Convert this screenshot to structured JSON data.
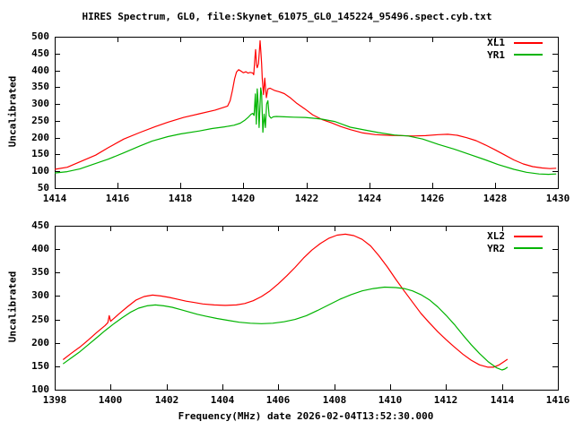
{
  "title": "HIRES Spectrum, GL0, file:Skynet_61075_GL0_145224_95496.spect.cyb.txt",
  "palette": {
    "background": "#ffffff",
    "foreground": "#000000",
    "xl_color": "#ff0000",
    "yr_color": "#00b400"
  },
  "chart_data": [
    {
      "type": "line",
      "title": "",
      "xlabel": "",
      "ylabel": "Uncalibrated",
      "xlim": [
        1414,
        1430
      ],
      "ylim": [
        50,
        500
      ],
      "xticks": [
        1414,
        1416,
        1418,
        1420,
        1422,
        1424,
        1426,
        1428,
        1430
      ],
      "yticks": [
        50,
        100,
        150,
        200,
        250,
        300,
        350,
        400,
        450,
        500
      ],
      "grid": false,
      "legend_position": "top-right",
      "series": [
        {
          "name": "XL1",
          "color": "#ff0000",
          "points": [
            [
              1414.0,
              106
            ],
            [
              1414.4,
              112
            ],
            [
              1414.8,
              128
            ],
            [
              1415.3,
              148
            ],
            [
              1415.7,
              170
            ],
            [
              1416.2,
              196
            ],
            [
              1416.7,
              215
            ],
            [
              1417.2,
              233
            ],
            [
              1417.6,
              246
            ],
            [
              1418.1,
              260
            ],
            [
              1418.6,
              271
            ],
            [
              1419.1,
              282
            ],
            [
              1419.5,
              294
            ],
            [
              1419.58,
              310
            ],
            [
              1419.65,
              340
            ],
            [
              1419.72,
              375
            ],
            [
              1419.78,
              395
            ],
            [
              1419.85,
              402
            ],
            [
              1419.92,
              398
            ],
            [
              1420.0,
              393
            ],
            [
              1420.08,
              396
            ],
            [
              1420.15,
              392
            ],
            [
              1420.22,
              394
            ],
            [
              1420.3,
              392
            ],
            [
              1420.33,
              387
            ],
            [
              1420.37,
              440
            ],
            [
              1420.39,
              462
            ],
            [
              1420.42,
              415
            ],
            [
              1420.44,
              408
            ],
            [
              1420.48,
              420
            ],
            [
              1420.53,
              488
            ],
            [
              1420.56,
              450
            ],
            [
              1420.58,
              420
            ],
            [
              1420.6,
              376
            ],
            [
              1420.64,
              328
            ],
            [
              1420.68,
              377
            ],
            [
              1420.73,
              319
            ],
            [
              1420.78,
              345
            ],
            [
              1420.85,
              347
            ],
            [
              1421.0,
              340
            ],
            [
              1421.15,
              336
            ],
            [
              1421.3,
              331
            ],
            [
              1421.5,
              318
            ],
            [
              1421.7,
              302
            ],
            [
              1421.96,
              285
            ],
            [
              1422.2,
              268
            ],
            [
              1422.5,
              254
            ],
            [
              1422.8,
              244
            ],
            [
              1423.1,
              233
            ],
            [
              1423.4,
              224
            ],
            [
              1423.8,
              214
            ],
            [
              1424.2,
              209
            ],
            [
              1424.6,
              207
            ],
            [
              1425.0,
              206
            ],
            [
              1425.4,
              205
            ],
            [
              1425.8,
              206
            ],
            [
              1426.2,
              209
            ],
            [
              1426.5,
              210
            ],
            [
              1426.8,
              207
            ],
            [
              1427.1,
              200
            ],
            [
              1427.4,
              191
            ],
            [
              1427.7,
              178
            ],
            [
              1428.0,
              164
            ],
            [
              1428.3,
              149
            ],
            [
              1428.6,
              134
            ],
            [
              1428.9,
              122
            ],
            [
              1429.2,
              114
            ],
            [
              1429.5,
              110
            ],
            [
              1429.75,
              108
            ],
            [
              1429.95,
              109
            ]
          ]
        },
        {
          "name": "YR1",
          "color": "#00b400",
          "points": [
            [
              1414.0,
              95
            ],
            [
              1414.4,
              99
            ],
            [
              1414.8,
              107
            ],
            [
              1415.2,
              120
            ],
            [
              1415.7,
              136
            ],
            [
              1416.2,
              155
            ],
            [
              1416.7,
              175
            ],
            [
              1417.1,
              190
            ],
            [
              1417.6,
              203
            ],
            [
              1418.0,
              211
            ],
            [
              1418.6,
              220
            ],
            [
              1419.0,
              227
            ],
            [
              1419.4,
              232
            ],
            [
              1419.7,
              237
            ],
            [
              1419.9,
              243
            ],
            [
              1420.05,
              252
            ],
            [
              1420.15,
              260
            ],
            [
              1420.25,
              270
            ],
            [
              1420.3,
              272
            ],
            [
              1420.34,
              266
            ],
            [
              1420.38,
              330
            ],
            [
              1420.41,
              240
            ],
            [
              1420.44,
              345
            ],
            [
              1420.47,
              300
            ],
            [
              1420.5,
              230
            ],
            [
              1420.55,
              348
            ],
            [
              1420.58,
              330
            ],
            [
              1420.62,
              216
            ],
            [
              1420.66,
              270
            ],
            [
              1420.7,
              230
            ],
            [
              1420.74,
              300
            ],
            [
              1420.78,
              310
            ],
            [
              1420.82,
              265
            ],
            [
              1420.88,
              258
            ],
            [
              1420.95,
              262
            ],
            [
              1421.05,
              263
            ],
            [
              1421.3,
              262
            ],
            [
              1421.6,
              261
            ],
            [
              1421.96,
              260
            ],
            [
              1422.2,
              258
            ],
            [
              1422.5,
              255
            ],
            [
              1422.9,
              248
            ],
            [
              1423.4,
              231
            ],
            [
              1423.9,
              222
            ],
            [
              1424.3,
              215
            ],
            [
              1424.8,
              208
            ],
            [
              1425.24,
              205
            ],
            [
              1425.7,
              196
            ],
            [
              1426.2,
              180
            ],
            [
              1426.7,
              166
            ],
            [
              1427.2,
              150
            ],
            [
              1427.7,
              134
            ],
            [
              1428.1,
              120
            ],
            [
              1428.6,
              106
            ],
            [
              1429.0,
              97
            ],
            [
              1429.4,
              92
            ],
            [
              1429.7,
              91
            ],
            [
              1429.95,
              92
            ]
          ]
        }
      ]
    },
    {
      "type": "line",
      "title": "",
      "xlabel": "Frequency(MHz) date 2026-02-04T13:52:30.000",
      "ylabel": "Uncalibrated",
      "xlim": [
        1398,
        1416
      ],
      "ylim": [
        100,
        450
      ],
      "xticks": [
        1398,
        1400,
        1402,
        1404,
        1406,
        1408,
        1410,
        1412,
        1414,
        1416
      ],
      "yticks": [
        100,
        150,
        200,
        250,
        300,
        350,
        400,
        450
      ],
      "grid": false,
      "legend_position": "top-right",
      "series": [
        {
          "name": "XL2",
          "color": "#ff0000",
          "points": [
            [
              1398.3,
              164
            ],
            [
              1398.6,
              178
            ],
            [
              1398.9,
              191
            ],
            [
              1399.2,
              206
            ],
            [
              1399.5,
              222
            ],
            [
              1399.8,
              237
            ],
            [
              1399.9,
              243
            ],
            [
              1399.95,
              258
            ],
            [
              1400.0,
              246
            ],
            [
              1400.3,
              262
            ],
            [
              1400.6,
              277
            ],
            [
              1400.9,
              291
            ],
            [
              1401.2,
              299
            ],
            [
              1401.5,
              302
            ],
            [
              1401.8,
              300
            ],
            [
              1402.1,
              297
            ],
            [
              1402.4,
              293
            ],
            [
              1402.7,
              289
            ],
            [
              1403.0,
              286
            ],
            [
              1403.3,
              283
            ],
            [
              1403.7,
              281
            ],
            [
              1404.1,
              280
            ],
            [
              1404.5,
              281
            ],
            [
              1404.8,
              284
            ],
            [
              1405.1,
              290
            ],
            [
              1405.4,
              299
            ],
            [
              1405.7,
              311
            ],
            [
              1406.0,
              326
            ],
            [
              1406.3,
              343
            ],
            [
              1406.6,
              361
            ],
            [
              1406.9,
              381
            ],
            [
              1407.2,
              398
            ],
            [
              1407.5,
              412
            ],
            [
              1407.8,
              423
            ],
            [
              1408.1,
              430
            ],
            [
              1408.4,
              432
            ],
            [
              1408.7,
              429
            ],
            [
              1409.0,
              421
            ],
            [
              1409.3,
              407
            ],
            [
              1409.6,
              386
            ],
            [
              1409.9,
              362
            ],
            [
              1410.2,
              336
            ],
            [
              1410.5,
              311
            ],
            [
              1410.8,
              287
            ],
            [
              1411.1,
              263
            ],
            [
              1411.4,
              243
            ],
            [
              1411.7,
              224
            ],
            [
              1412.0,
              207
            ],
            [
              1412.3,
              191
            ],
            [
              1412.6,
              176
            ],
            [
              1412.9,
              163
            ],
            [
              1413.2,
              153
            ],
            [
              1413.5,
              148
            ],
            [
              1413.7,
              148
            ],
            [
              1413.9,
              153
            ],
            [
              1414.1,
              161
            ],
            [
              1414.2,
              165
            ]
          ]
        },
        {
          "name": "YR2",
          "color": "#00b400",
          "points": [
            [
              1398.3,
              155
            ],
            [
              1398.6,
              168
            ],
            [
              1398.9,
              181
            ],
            [
              1399.2,
              196
            ],
            [
              1399.5,
              211
            ],
            [
              1399.8,
              226
            ],
            [
              1400.1,
              240
            ],
            [
              1400.4,
              253
            ],
            [
              1400.7,
              265
            ],
            [
              1401.0,
              274
            ],
            [
              1401.3,
              279
            ],
            [
              1401.6,
              281
            ],
            [
              1401.9,
              279
            ],
            [
              1402.2,
              276
            ],
            [
              1402.5,
              271
            ],
            [
              1402.8,
              266
            ],
            [
              1403.1,
              261
            ],
            [
              1403.4,
              257
            ],
            [
              1403.8,
              252
            ],
            [
              1404.2,
              248
            ],
            [
              1404.6,
              244
            ],
            [
              1405.0,
              242
            ],
            [
              1405.4,
              241
            ],
            [
              1405.8,
              242
            ],
            [
              1406.2,
              245
            ],
            [
              1406.6,
              250
            ],
            [
              1407.0,
              258
            ],
            [
              1407.4,
              269
            ],
            [
              1407.8,
              281
            ],
            [
              1408.2,
              293
            ],
            [
              1408.6,
              303
            ],
            [
              1409.0,
              311
            ],
            [
              1409.4,
              316
            ],
            [
              1409.8,
              319
            ],
            [
              1410.2,
              318
            ],
            [
              1410.5,
              316
            ],
            [
              1410.8,
              311
            ],
            [
              1411.1,
              303
            ],
            [
              1411.4,
              292
            ],
            [
              1411.7,
              277
            ],
            [
              1412.0,
              259
            ],
            [
              1412.3,
              239
            ],
            [
              1412.6,
              217
            ],
            [
              1412.9,
              196
            ],
            [
              1413.2,
              177
            ],
            [
              1413.5,
              160
            ],
            [
              1413.8,
              147
            ],
            [
              1414.0,
              142
            ],
            [
              1414.1,
              144
            ],
            [
              1414.2,
              148
            ]
          ]
        }
      ]
    }
  ]
}
